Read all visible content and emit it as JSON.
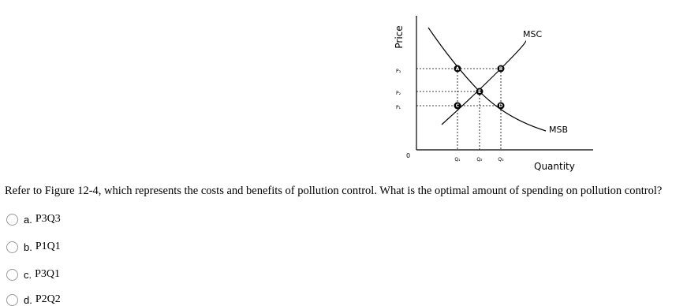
{
  "figure": {
    "y_axis_label": "Price",
    "x_axis_label": "Quantity",
    "origin": "0",
    "price_labels": [
      "P₃",
      "P₂",
      "P₁"
    ],
    "quantity_labels": [
      "Q₁",
      "Q₂",
      "Q₃"
    ],
    "curves": [
      "MSC",
      "MSB"
    ],
    "points": [
      "A",
      "B",
      "E",
      "C",
      "D"
    ]
  },
  "question": "Refer to Figure 12-4, which represents the costs and benefits of pollution control. What is the optimal amount of spending on pollution control?",
  "options": [
    {
      "letter": "a.",
      "text": "P3Q3"
    },
    {
      "letter": "b.",
      "text": "P1Q1"
    },
    {
      "letter": "c.",
      "text": "P3Q1"
    },
    {
      "letter": "d.",
      "text": "P2Q2"
    }
  ]
}
